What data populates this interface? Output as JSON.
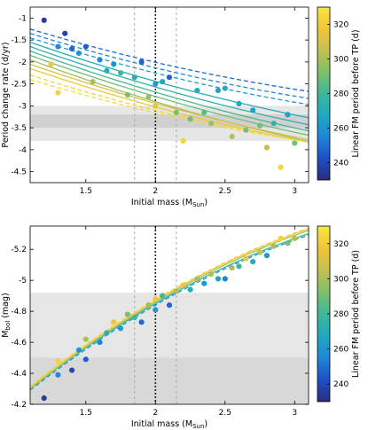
{
  "chart_data": [
    {
      "type": "scatter",
      "xlabel": "Initial mass (M",
      "xlabel_sub": "Sun",
      "xlabel_end": ")",
      "ylabel": "Period change rate (d/yr)",
      "xlim": [
        1.1,
        3.1
      ],
      "ylim": [
        -4.75,
        -0.75
      ],
      "x_ticks": [
        1.5,
        2,
        2.5,
        3
      ],
      "y_ticks": [
        -1,
        -1.5,
        -2,
        -2.5,
        -3,
        -3.5,
        -4,
        -4.5
      ],
      "y_inverted": false,
      "shaded_bands": [
        {
          "y0": -3.0,
          "y1": -3.8,
          "color": "#e6e6e6"
        },
        {
          "y0": -3.2,
          "y1": -3.5,
          "color": "#d0d0d0"
        }
      ],
      "vlines": [
        {
          "x": 2.0,
          "style": "dotted",
          "color": "#222222"
        },
        {
          "x": 1.85,
          "style": "dashed",
          "color": "#aaaaaa"
        },
        {
          "x": 2.15,
          "style": "dashed",
          "color": "#aaaaaa"
        }
      ],
      "points": [
        {
          "x": 1.2,
          "y": -1.05,
          "p": 236
        },
        {
          "x": 1.25,
          "y": -2.05,
          "p": 318
        },
        {
          "x": 1.3,
          "y": -2.7,
          "p": 322
        },
        {
          "x": 1.3,
          "y": -1.65,
          "p": 255
        },
        {
          "x": 1.35,
          "y": -1.35,
          "p": 238
        },
        {
          "x": 1.4,
          "y": -1.7,
          "p": 248
        },
        {
          "x": 1.45,
          "y": -1.8,
          "p": 260
        },
        {
          "x": 1.5,
          "y": -1.65,
          "p": 246
        },
        {
          "x": 1.55,
          "y": -2.45,
          "p": 300
        },
        {
          "x": 1.6,
          "y": -1.95,
          "p": 255
        },
        {
          "x": 1.65,
          "y": -2.2,
          "p": 272
        },
        {
          "x": 1.7,
          "y": -2.05,
          "p": 260
        },
        {
          "x": 1.75,
          "y": -2.25,
          "p": 280
        },
        {
          "x": 1.8,
          "y": -2.75,
          "p": 292
        },
        {
          "x": 1.85,
          "y": -2.35,
          "p": 272
        },
        {
          "x": 1.9,
          "y": -2.0,
          "p": 248
        },
        {
          "x": 1.95,
          "y": -2.8,
          "p": 298
        },
        {
          "x": 2.0,
          "y": -3.0,
          "p": 315
        },
        {
          "x": 2.0,
          "y": -2.5,
          "p": 262
        },
        {
          "x": 2.05,
          "y": -2.45,
          "p": 268
        },
        {
          "x": 2.1,
          "y": -2.35,
          "p": 248
        },
        {
          "x": 2.15,
          "y": -3.15,
          "p": 292
        },
        {
          "x": 2.2,
          "y": -3.8,
          "p": 322
        },
        {
          "x": 2.25,
          "y": -3.3,
          "p": 290
        },
        {
          "x": 2.3,
          "y": -2.65,
          "p": 268
        },
        {
          "x": 2.35,
          "y": -3.15,
          "p": 285
        },
        {
          "x": 2.4,
          "y": -3.4,
          "p": 298
        },
        {
          "x": 2.45,
          "y": -2.65,
          "p": 265
        },
        {
          "x": 2.5,
          "y": -2.6,
          "p": 270
        },
        {
          "x": 2.55,
          "y": -3.7,
          "p": 302
        },
        {
          "x": 2.6,
          "y": -2.95,
          "p": 268
        },
        {
          "x": 2.65,
          "y": -3.55,
          "p": 292
        },
        {
          "x": 2.7,
          "y": -3.1,
          "p": 265
        },
        {
          "x": 2.75,
          "y": -3.45,
          "p": 290
        },
        {
          "x": 2.8,
          "y": -3.95,
          "p": 305
        },
        {
          "x": 2.85,
          "y": -3.4,
          "p": 275
        },
        {
          "x": 2.9,
          "y": -4.4,
          "p": 322
        },
        {
          "x": 2.95,
          "y": -3.2,
          "p": 265
        },
        {
          "x": 3.0,
          "y": -3.85,
          "p": 290
        }
      ],
      "curves": [
        {
          "a": -1.25,
          "b": -0.95,
          "p": 248,
          "style": "dashed"
        },
        {
          "a": -1.35,
          "b": -0.98,
          "p": 255,
          "style": "dashed"
        },
        {
          "a": -1.45,
          "b": -1.0,
          "p": 262,
          "style": "dashed"
        },
        {
          "a": -1.55,
          "b": -1.1,
          "p": 270,
          "style": "solid"
        },
        {
          "a": -1.65,
          "b": -1.13,
          "p": 275,
          "style": "solid"
        },
        {
          "a": -1.75,
          "b": -1.15,
          "p": 282,
          "style": "solid"
        },
        {
          "a": -1.85,
          "b": -1.15,
          "p": 290,
          "style": "solid"
        },
        {
          "a": -1.95,
          "b": -1.17,
          "p": 298,
          "style": "solid"
        },
        {
          "a": -2.05,
          "b": -1.1,
          "p": 310,
          "style": "solid"
        },
        {
          "a": -2.15,
          "b": -1.08,
          "p": 318,
          "style": "solid"
        },
        {
          "a": -2.3,
          "b": -1.0,
          "p": 322,
          "style": "dashed"
        },
        {
          "a": -2.4,
          "b": -0.95,
          "p": 325,
          "style": "dashed"
        }
      ]
    },
    {
      "type": "scatter",
      "xlabel": "Initial mass (M",
      "xlabel_sub": "Sun",
      "xlabel_end": ")",
      "ylabel": "M",
      "ylabel_sub": "bol",
      "ylabel_end": " (mag)",
      "xlim": [
        1.1,
        3.1
      ],
      "ylim": [
        -4.2,
        -5.35
      ],
      "x_ticks": [
        1.5,
        2,
        2.5,
        3
      ],
      "y_ticks": [
        -4.2,
        -4.4,
        -4.6,
        -4.8,
        -5,
        -5.2
      ],
      "y_inverted": true,
      "shaded_bands": [
        {
          "y0": -4.2,
          "y1": -4.92,
          "color": "#e6e6e6"
        },
        {
          "y0": -4.2,
          "y1": -4.5,
          "color": "#d8d8d8"
        }
      ],
      "vlines": [
        {
          "x": 2.0,
          "style": "dotted",
          "color": "#222222"
        },
        {
          "x": 1.85,
          "style": "dashed",
          "color": "#aaaaaa"
        },
        {
          "x": 2.15,
          "style": "dashed",
          "color": "#aaaaaa"
        }
      ],
      "points": [
        {
          "x": 1.2,
          "y": -4.24,
          "p": 236
        },
        {
          "x": 1.3,
          "y": -4.39,
          "p": 255
        },
        {
          "x": 1.3,
          "y": -4.48,
          "p": 322
        },
        {
          "x": 1.4,
          "y": -4.42,
          "p": 240
        },
        {
          "x": 1.45,
          "y": -4.55,
          "p": 260
        },
        {
          "x": 1.5,
          "y": -4.49,
          "p": 246
        },
        {
          "x": 1.5,
          "y": -4.62,
          "p": 300
        },
        {
          "x": 1.6,
          "y": -4.6,
          "p": 255
        },
        {
          "x": 1.65,
          "y": -4.66,
          "p": 272
        },
        {
          "x": 1.7,
          "y": -4.73,
          "p": 318
        },
        {
          "x": 1.75,
          "y": -4.69,
          "p": 262
        },
        {
          "x": 1.8,
          "y": -4.78,
          "p": 292
        },
        {
          "x": 1.85,
          "y": -4.76,
          "p": 280
        },
        {
          "x": 1.9,
          "y": -4.73,
          "p": 248
        },
        {
          "x": 1.95,
          "y": -4.84,
          "p": 298
        },
        {
          "x": 2.0,
          "y": -4.88,
          "p": 318
        },
        {
          "x": 2.0,
          "y": -4.81,
          "p": 262
        },
        {
          "x": 2.05,
          "y": -4.9,
          "p": 280
        },
        {
          "x": 2.1,
          "y": -4.84,
          "p": 248
        },
        {
          "x": 2.15,
          "y": -4.93,
          "p": 300
        },
        {
          "x": 2.2,
          "y": -4.97,
          "p": 318
        },
        {
          "x": 2.25,
          "y": -4.94,
          "p": 272
        },
        {
          "x": 2.3,
          "y": -5.01,
          "p": 300
        },
        {
          "x": 2.35,
          "y": -4.98,
          "p": 260
        },
        {
          "x": 2.4,
          "y": -5.04,
          "p": 302
        },
        {
          "x": 2.45,
          "y": -5.01,
          "p": 265
        },
        {
          "x": 2.5,
          "y": -5.01,
          "p": 255
        },
        {
          "x": 2.55,
          "y": -5.08,
          "p": 300
        },
        {
          "x": 2.6,
          "y": -5.09,
          "p": 280
        },
        {
          "x": 2.65,
          "y": -5.14,
          "p": 318
        },
        {
          "x": 2.7,
          "y": -5.12,
          "p": 272
        },
        {
          "x": 2.75,
          "y": -5.18,
          "p": 305
        },
        {
          "x": 2.8,
          "y": -5.16,
          "p": 262
        },
        {
          "x": 2.85,
          "y": -5.22,
          "p": 300
        },
        {
          "x": 2.9,
          "y": -5.27,
          "p": 322
        },
        {
          "x": 2.95,
          "y": -5.24,
          "p": 290
        },
        {
          "x": 3.0,
          "y": -5.27,
          "p": 302
        }
      ],
      "curves": [
        {
          "a": -4.84,
          "b": -0.52,
          "c": 0.1,
          "p": 262,
          "style": "dashed"
        },
        {
          "a": -4.85,
          "b": -0.52,
          "c": 0.1,
          "p": 275,
          "style": "solid"
        },
        {
          "a": -4.86,
          "b": -0.53,
          "c": 0.1,
          "p": 300,
          "style": "solid"
        },
        {
          "a": -4.87,
          "b": -0.53,
          "c": 0.1,
          "p": 320,
          "style": "solid"
        },
        {
          "a": -4.875,
          "b": -0.53,
          "c": 0.1,
          "p": 322,
          "style": "dashed"
        }
      ]
    }
  ],
  "colorbar": {
    "label": "Linear FM period before TP (d)",
    "min": 230,
    "max": 330,
    "ticks": [
      240,
      260,
      280,
      300,
      320
    ],
    "stops": [
      "#2c2d78",
      "#1f4fc8",
      "#1f86d8",
      "#1fa9c0",
      "#3eb79a",
      "#7ec06a",
      "#c4c050",
      "#f0c53a",
      "#f8e83c"
    ]
  }
}
